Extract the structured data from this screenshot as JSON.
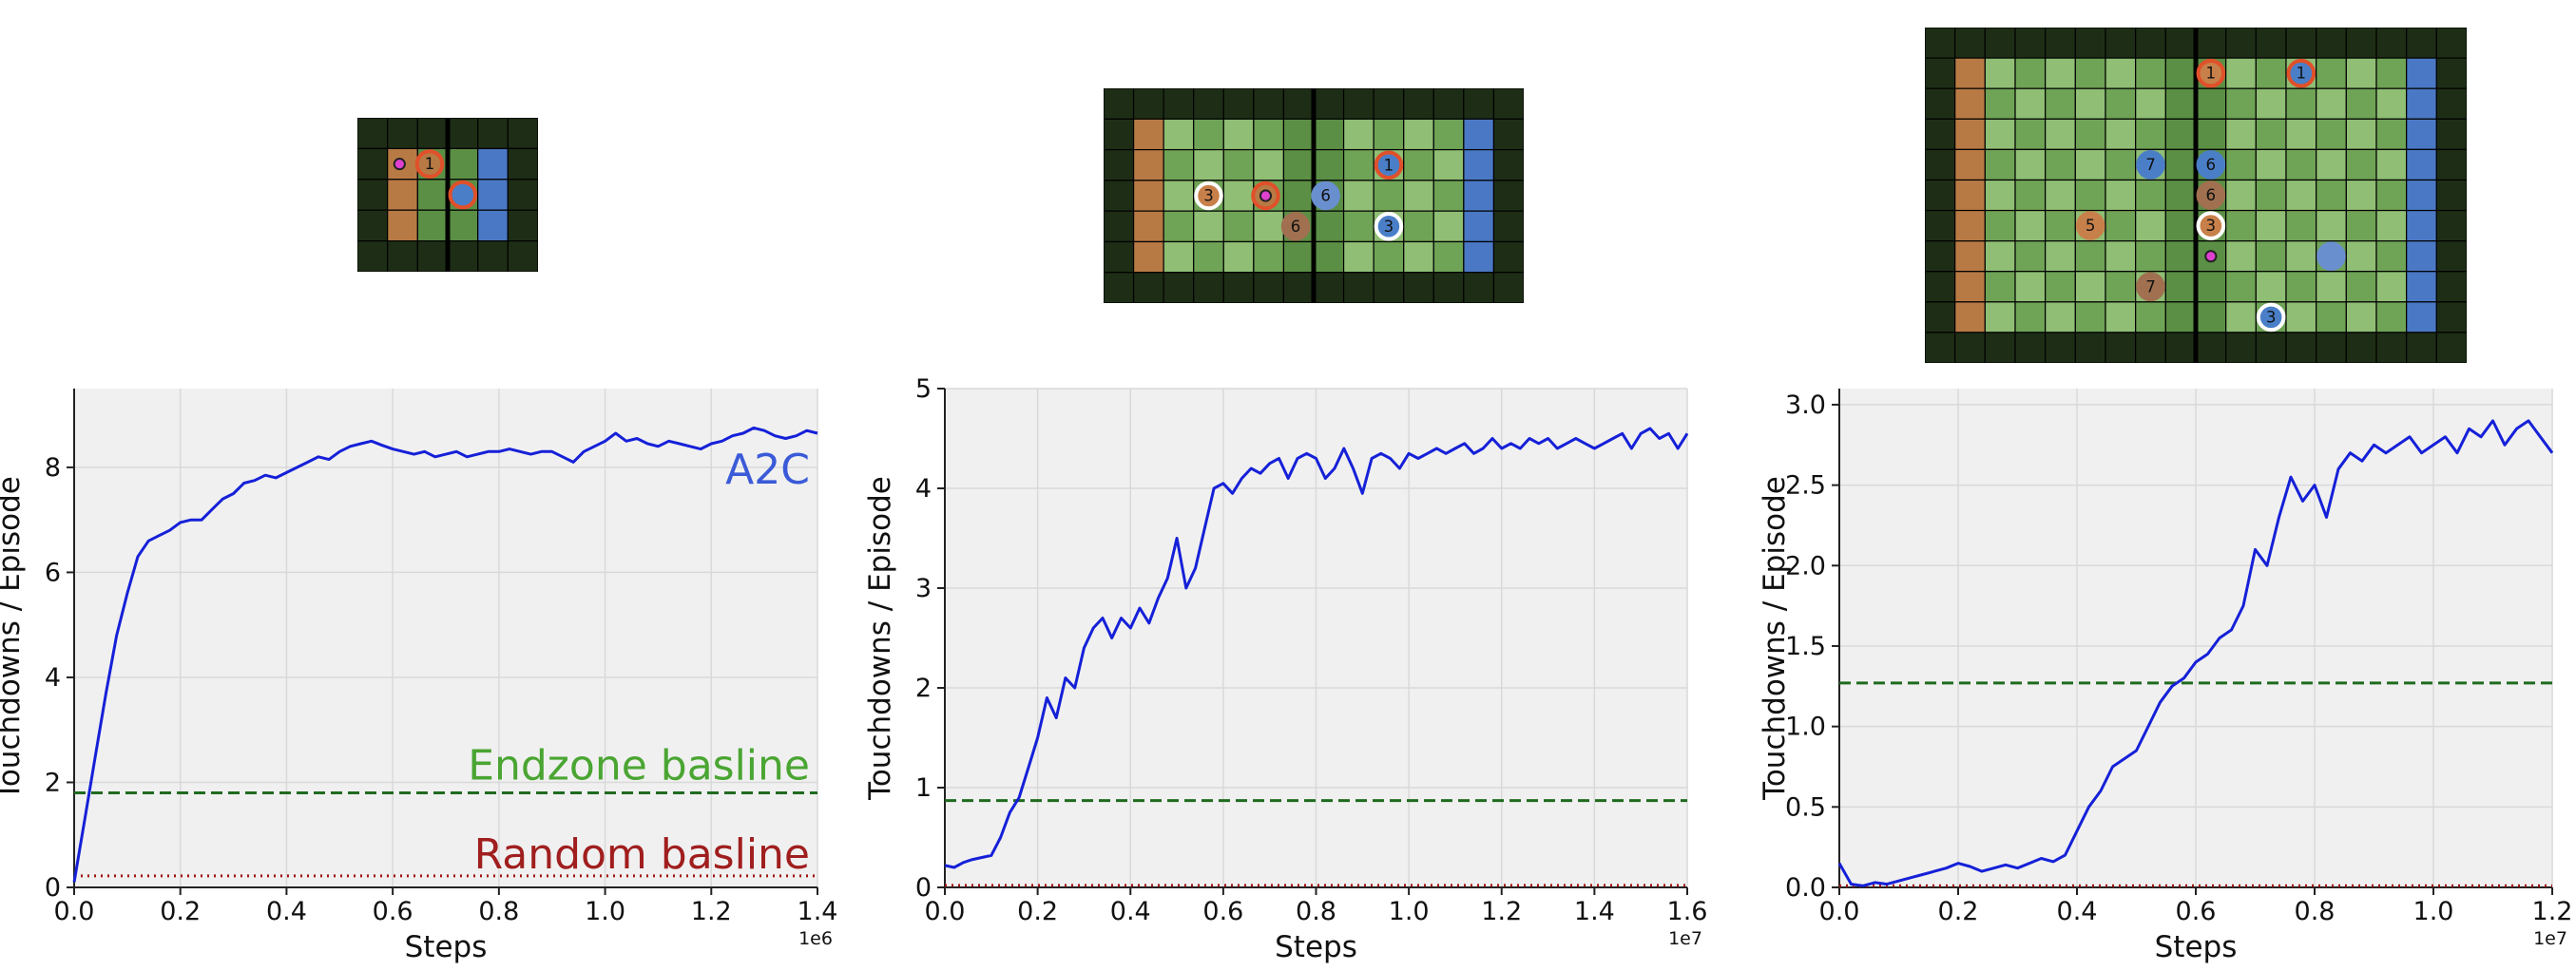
{
  "colors": {
    "line": "#1520d8",
    "endzone": "#1f6b1f",
    "random": "#a31515",
    "plot_bg": "#f0f0f0",
    "grid": "#d9d9d9",
    "annot_a2c": "#3a5ad8",
    "annot_endzone": "#4aa532",
    "annot_random": "#a01e1e",
    "cell_border": "#000000",
    "dark": "#1e2e16",
    "grass": "#8fbe74",
    "grass2": "#6fa356",
    "pitch_mid": "#5b8f45",
    "endzone_left": "#b87a45",
    "endzone_right": "#4a78c4",
    "team_red": "#e0502a",
    "team_blue": "#4a7fc8",
    "ball": "#e040d0"
  },
  "fields": [
    {
      "name": "small",
      "cols": 6,
      "rows": 5,
      "endzone_left_col": 1,
      "endzone_right_col": 4,
      "inner": {
        "c0": 1,
        "c1": 4,
        "r0": 1,
        "r1": 3
      },
      "midline_col": 3,
      "players": [
        {
          "num": "1",
          "team": "red",
          "col": 2.4,
          "row": 1.5,
          "ring": "#e0502a",
          "fill": "#b87a45"
        },
        {
          "num": "",
          "team": "red",
          "col": 3.5,
          "row": 2.5,
          "ring": "#e0502a",
          "fill": "#4a7fc8"
        }
      ],
      "ball": {
        "col": 1.4,
        "row": 1.5
      }
    },
    {
      "name": "medium",
      "cols": 14,
      "rows": 7,
      "endzone_left_col": 1,
      "endzone_right_col": 12,
      "inner": {
        "c0": 1,
        "c1": 12,
        "r0": 1,
        "r1": 5
      },
      "midline_col": 7,
      "players": [
        {
          "num": "3",
          "team": "red",
          "col": 3.5,
          "row": 3.5,
          "ring": "#ffffff",
          "fill": "#c8804a"
        },
        {
          "num": "",
          "team": "red",
          "col": 5.4,
          "row": 3.5,
          "ring": "#e0502a",
          "fill": "#b87a45"
        },
        {
          "num": "6",
          "team": "red",
          "col": 6.4,
          "row": 4.5,
          "ring": "#a07050",
          "fill": "#a07050"
        },
        {
          "num": "6",
          "team": "blue",
          "col": 7.4,
          "row": 3.5,
          "ring": "#6a8fcf",
          "fill": "#6a8fcf"
        },
        {
          "num": "1",
          "team": "blue",
          "col": 9.5,
          "row": 2.5,
          "ring": "#e0502a",
          "fill": "#4a7fc8"
        },
        {
          "num": "3",
          "team": "blue",
          "col": 9.5,
          "row": 4.5,
          "ring": "#ffffff",
          "fill": "#4a7fc8"
        }
      ],
      "ball": {
        "col": 5.4,
        "row": 3.5
      }
    },
    {
      "name": "large",
      "cols": 18,
      "rows": 11,
      "endzone_left_col": 1,
      "endzone_right_col": 16,
      "inner": {
        "c0": 1,
        "c1": 16,
        "r0": 1,
        "r1": 9
      },
      "midline_col": 9,
      "players": [
        {
          "num": "1",
          "team": "red",
          "col": 9.5,
          "row": 1.5,
          "ring": "#e0502a",
          "fill": "#c8804a"
        },
        {
          "num": "1",
          "team": "blue",
          "col": 12.5,
          "row": 1.5,
          "ring": "#e0502a",
          "fill": "#4a7fc8"
        },
        {
          "num": "7",
          "team": "blue",
          "col": 7.5,
          "row": 4.5,
          "ring": "#4a7fc8",
          "fill": "#4a7fc8"
        },
        {
          "num": "6",
          "team": "blue",
          "col": 9.5,
          "row": 4.5,
          "ring": "#4a7fc8",
          "fill": "#4a7fc8"
        },
        {
          "num": "6",
          "team": "red",
          "col": 9.5,
          "row": 5.5,
          "ring": "#a07050",
          "fill": "#a07050"
        },
        {
          "num": "5",
          "team": "red",
          "col": 5.5,
          "row": 6.5,
          "ring": "#c8804a",
          "fill": "#c8804a"
        },
        {
          "num": "3",
          "team": "red",
          "col": 9.5,
          "row": 6.5,
          "ring": "#ffffff",
          "fill": "#c8804a"
        },
        {
          "num": "",
          "team": "blue",
          "col": 13.5,
          "row": 7.5,
          "ring": "#6a8fcf",
          "fill": "#6a8fcf"
        },
        {
          "num": "7",
          "team": "red",
          "col": 7.5,
          "row": 8.5,
          "ring": "#a07050",
          "fill": "#a07050"
        },
        {
          "num": "3",
          "team": "blue",
          "col": 11.5,
          "row": 9.5,
          "ring": "#ffffff",
          "fill": "#4a7fc8"
        }
      ],
      "ball": {
        "col": 9.5,
        "row": 7.5
      }
    }
  ],
  "chart_data": [
    {
      "type": "line",
      "xlabel": "Steps",
      "ylabel": "Touchdowns / Episode",
      "xlim": [
        0,
        1.4
      ],
      "ylim": [
        0,
        9.5
      ],
      "x_multiplier_label": "1e6",
      "xticks": [
        0,
        0.2,
        0.4,
        0.6,
        0.8,
        1.0,
        1.2,
        1.4
      ],
      "xtick_labels": [
        "0.0",
        "0.2",
        "0.4",
        "0.6",
        "0.8",
        "1.0",
        "1.2",
        "1.4"
      ],
      "yticks": [
        0,
        2,
        4,
        6,
        8
      ],
      "ytick_labels": [
        "0",
        "2",
        "4",
        "6",
        "8"
      ],
      "grid": true,
      "series": [
        {
          "name": "A2C",
          "x": [
            0.0,
            0.02,
            0.04,
            0.06,
            0.08,
            0.1,
            0.12,
            0.14,
            0.16,
            0.18,
            0.2,
            0.22,
            0.24,
            0.26,
            0.28,
            0.3,
            0.32,
            0.34,
            0.36,
            0.38,
            0.4,
            0.42,
            0.44,
            0.46,
            0.48,
            0.5,
            0.52,
            0.54,
            0.56,
            0.58,
            0.6,
            0.62,
            0.64,
            0.66,
            0.68,
            0.7,
            0.72,
            0.74,
            0.76,
            0.78,
            0.8,
            0.82,
            0.84,
            0.86,
            0.88,
            0.9,
            0.92,
            0.94,
            0.96,
            0.98,
            1.0,
            1.02,
            1.04,
            1.06,
            1.08,
            1.1,
            1.12,
            1.14,
            1.16,
            1.18,
            1.2,
            1.22,
            1.24,
            1.26,
            1.28,
            1.3,
            1.32,
            1.34,
            1.36,
            1.38,
            1.4
          ],
          "y": [
            0.1,
            1.3,
            2.5,
            3.7,
            4.8,
            5.6,
            6.3,
            6.6,
            6.7,
            6.8,
            6.95,
            7.0,
            7.0,
            7.2,
            7.4,
            7.5,
            7.7,
            7.75,
            7.85,
            7.8,
            7.9,
            8.0,
            8.1,
            8.2,
            8.15,
            8.3,
            8.4,
            8.45,
            8.5,
            8.42,
            8.35,
            8.3,
            8.25,
            8.3,
            8.2,
            8.25,
            8.3,
            8.2,
            8.25,
            8.3,
            8.3,
            8.35,
            8.3,
            8.25,
            8.3,
            8.3,
            8.2,
            8.1,
            8.3,
            8.4,
            8.5,
            8.65,
            8.5,
            8.55,
            8.45,
            8.4,
            8.5,
            8.45,
            8.4,
            8.35,
            8.45,
            8.5,
            8.6,
            8.65,
            8.75,
            8.7,
            8.6,
            8.55,
            8.6,
            8.7,
            8.65
          ]
        }
      ],
      "baselines": [
        {
          "name": "Endzone basline",
          "value": 1.8,
          "style": "dashed"
        },
        {
          "name": "Random basline",
          "value": 0.22,
          "style": "dotted"
        }
      ],
      "annotations": [
        "A2C",
        "Endzone basline",
        "Random basline"
      ]
    },
    {
      "type": "line",
      "xlabel": "Steps",
      "ylabel": "Touchdowns / Episode",
      "xlim": [
        0,
        1.6
      ],
      "ylim": [
        0,
        5
      ],
      "x_multiplier_label": "1e7",
      "xticks": [
        0,
        0.2,
        0.4,
        0.6,
        0.8,
        1.0,
        1.2,
        1.4,
        1.6
      ],
      "xtick_labels": [
        "0.0",
        "0.2",
        "0.4",
        "0.6",
        "0.8",
        "1.0",
        "1.2",
        "1.4",
        "1.6"
      ],
      "yticks": [
        0,
        1,
        2,
        3,
        4,
        5
      ],
      "ytick_labels": [
        "0",
        "1",
        "2",
        "3",
        "4",
        "5"
      ],
      "grid": true,
      "series": [
        {
          "name": "",
          "x": [
            0.0,
            0.02,
            0.04,
            0.06,
            0.08,
            0.1,
            0.12,
            0.14,
            0.16,
            0.18,
            0.2,
            0.22,
            0.24,
            0.26,
            0.28,
            0.3,
            0.32,
            0.34,
            0.36,
            0.38,
            0.4,
            0.42,
            0.44,
            0.46,
            0.48,
            0.5,
            0.52,
            0.54,
            0.56,
            0.58,
            0.6,
            0.62,
            0.64,
            0.66,
            0.68,
            0.7,
            0.72,
            0.74,
            0.76,
            0.78,
            0.8,
            0.82,
            0.84,
            0.86,
            0.88,
            0.9,
            0.92,
            0.94,
            0.96,
            0.98,
            1.0,
            1.02,
            1.04,
            1.06,
            1.08,
            1.1,
            1.12,
            1.14,
            1.16,
            1.18,
            1.2,
            1.22,
            1.24,
            1.26,
            1.28,
            1.3,
            1.32,
            1.34,
            1.36,
            1.38,
            1.4,
            1.42,
            1.44,
            1.46,
            1.48,
            1.5,
            1.52,
            1.54,
            1.56,
            1.58,
            1.6
          ],
          "y": [
            0.22,
            0.2,
            0.25,
            0.28,
            0.3,
            0.32,
            0.5,
            0.75,
            0.9,
            1.2,
            1.5,
            1.9,
            1.7,
            2.1,
            2.0,
            2.4,
            2.6,
            2.7,
            2.5,
            2.7,
            2.6,
            2.8,
            2.65,
            2.9,
            3.1,
            3.5,
            3.0,
            3.2,
            3.6,
            4.0,
            4.05,
            3.95,
            4.1,
            4.2,
            4.15,
            4.25,
            4.3,
            4.1,
            4.3,
            4.35,
            4.3,
            4.1,
            4.2,
            4.4,
            4.2,
            3.95,
            4.3,
            4.35,
            4.3,
            4.2,
            4.35,
            4.3,
            4.35,
            4.4,
            4.35,
            4.4,
            4.45,
            4.35,
            4.4,
            4.5,
            4.4,
            4.45,
            4.4,
            4.5,
            4.45,
            4.5,
            4.4,
            4.45,
            4.5,
            4.45,
            4.4,
            4.45,
            4.5,
            4.55,
            4.4,
            4.55,
            4.6,
            4.5,
            4.55,
            4.4,
            4.55
          ]
        }
      ],
      "baselines": [
        {
          "name": "",
          "value": 0.87,
          "style": "dashed"
        },
        {
          "name": "",
          "value": 0.02,
          "style": "dotted"
        }
      ],
      "annotations": []
    },
    {
      "type": "line",
      "xlabel": "Steps",
      "ylabel": "Touchdowns / Episode",
      "xlim": [
        0,
        1.2
      ],
      "ylim": [
        0,
        3.1
      ],
      "x_multiplier_label": "1e7",
      "xticks": [
        0,
        0.2,
        0.4,
        0.6,
        0.8,
        1.0,
        1.2
      ],
      "xtick_labels": [
        "0.0",
        "0.2",
        "0.4",
        "0.6",
        "0.8",
        "1.0",
        "1.2"
      ],
      "yticks": [
        0,
        0.5,
        1.0,
        1.5,
        2.0,
        2.5,
        3.0
      ],
      "ytick_labels": [
        "0.0",
        "0.5",
        "1.0",
        "1.5",
        "2.0",
        "2.5",
        "3.0"
      ],
      "grid": true,
      "series": [
        {
          "name": "",
          "x": [
            0.0,
            0.02,
            0.04,
            0.06,
            0.08,
            0.1,
            0.12,
            0.14,
            0.16,
            0.18,
            0.2,
            0.22,
            0.24,
            0.26,
            0.28,
            0.3,
            0.32,
            0.34,
            0.36,
            0.38,
            0.4,
            0.42,
            0.44,
            0.46,
            0.48,
            0.5,
            0.52,
            0.54,
            0.56,
            0.58,
            0.6,
            0.62,
            0.64,
            0.66,
            0.68,
            0.7,
            0.72,
            0.74,
            0.76,
            0.78,
            0.8,
            0.82,
            0.84,
            0.86,
            0.88,
            0.9,
            0.92,
            0.94,
            0.96,
            0.98,
            1.0,
            1.02,
            1.04,
            1.06,
            1.08,
            1.1,
            1.12,
            1.14,
            1.16,
            1.18,
            1.2
          ],
          "y": [
            0.15,
            0.02,
            0.01,
            0.03,
            0.02,
            0.04,
            0.06,
            0.08,
            0.1,
            0.12,
            0.15,
            0.13,
            0.1,
            0.12,
            0.14,
            0.12,
            0.15,
            0.18,
            0.16,
            0.2,
            0.35,
            0.5,
            0.6,
            0.75,
            0.8,
            0.85,
            1.0,
            1.15,
            1.25,
            1.3,
            1.4,
            1.45,
            1.55,
            1.6,
            1.75,
            2.1,
            2.0,
            2.3,
            2.55,
            2.4,
            2.5,
            2.3,
            2.6,
            2.7,
            2.65,
            2.75,
            2.7,
            2.75,
            2.8,
            2.7,
            2.75,
            2.8,
            2.7,
            2.85,
            2.8,
            2.9,
            2.75,
            2.85,
            2.9,
            2.8,
            2.7
          ]
        }
      ],
      "baselines": [
        {
          "name": "",
          "value": 1.27,
          "style": "dashed"
        },
        {
          "name": "",
          "value": 0.01,
          "style": "dotted"
        }
      ],
      "annotations": []
    }
  ]
}
